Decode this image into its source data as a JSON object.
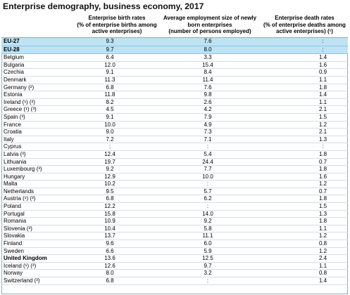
{
  "title": "Enterprise demography, business economy, 2017",
  "headers": [
    "",
    "Enterprise birth rates\n(% of enterprise births among active enterprises)",
    "Average employment size of newly born enterprises\n(number of persons employed)",
    "Enterprise death rates\n(% of enterprise deaths among active enterprises) (¹)"
  ],
  "rows": [
    {
      "label": "EU-27",
      "birth": "9.3",
      "emp": "7.6",
      "death": ":",
      "type": "agg"
    },
    {
      "label": "EU-28",
      "birth": "9.7",
      "emp": "8.0",
      "death": ":",
      "type": "agg"
    },
    {
      "label": "Belgium",
      "birth": "6.4",
      "emp": "3.3",
      "death": "1.4"
    },
    {
      "label": "Bulgaria",
      "birth": "12.0",
      "emp": "15.4",
      "death": "1.6"
    },
    {
      "label": "Czechia",
      "birth": "9.1",
      "emp": "8.4",
      "death": "0.9"
    },
    {
      "label": "Denmark",
      "birth": "11.3",
      "emp": "11.4",
      "death": "1.1"
    },
    {
      "label": "Germany (²)",
      "birth": "6.8",
      "emp": "7.6",
      "death": "1.8"
    },
    {
      "label": "Estonia",
      "birth": "11.8",
      "emp": "9.8",
      "death": "1.4"
    },
    {
      "label": "Ireland (¹) (²)",
      "birth": "8.2",
      "emp": "2.6",
      "death": "1.1"
    },
    {
      "label": "Greece (¹) (³)",
      "birth": "4.5",
      "emp": "4.2",
      "death": "2.1"
    },
    {
      "label": "Spain (³)",
      "birth": "9.1",
      "emp": "7.9",
      "death": "1.5"
    },
    {
      "label": "France",
      "birth": "10.0",
      "emp": "4.9",
      "death": "1.2"
    },
    {
      "label": "Croatia",
      "birth": "9.0",
      "emp": "7.3",
      "death": "2.1"
    },
    {
      "label": "Italy",
      "birth": "7.2",
      "emp": "7.1",
      "death": "1.3"
    },
    {
      "label": "Cyprus",
      "birth": ":",
      "emp": ":",
      "death": ":"
    },
    {
      "label": "Latvia (³)",
      "birth": "12.4",
      "emp": "5.4",
      "death": "1.8"
    },
    {
      "label": "Lithuania",
      "birth": "19.7",
      "emp": "24.4",
      "death": "0.7"
    },
    {
      "label": "Luxembourg (³)",
      "birth": "9.2",
      "emp": "7.7",
      "death": "1.8"
    },
    {
      "label": "Hungary",
      "birth": "12.9",
      "emp": "10.0",
      "death": "1.6"
    },
    {
      "label": "Malta",
      "birth": "10.2",
      "emp": ":",
      "death": "1.2"
    },
    {
      "label": "Netherlands",
      "birth": "9.5",
      "emp": "5.7",
      "death": "0.7"
    },
    {
      "label": "Austria (¹) (³)",
      "birth": "6.8",
      "emp": "6.2",
      "death": "1.8"
    },
    {
      "label": "Poland",
      "birth": "12.2",
      "emp": ":",
      "death": "1.5"
    },
    {
      "label": "Portugal",
      "birth": "15.8",
      "emp": "14.0",
      "death": "1.3"
    },
    {
      "label": "Romania",
      "birth": "10.9",
      "emp": "9.2",
      "death": "1.8"
    },
    {
      "label": "Slovenia (³)",
      "birth": "10.4",
      "emp": "5.8",
      "death": "1.1"
    },
    {
      "label": "Slovakia",
      "birth": "13.7",
      "emp": "11.1",
      "death": "1.2"
    },
    {
      "label": "Finland",
      "birth": "9.6",
      "emp": "6.0",
      "death": "0.8"
    },
    {
      "label": "Sweden",
      "birth": "6.6",
      "emp": "5.9",
      "death": "1.2"
    },
    {
      "label": "United Kingdom",
      "birth": "13.6",
      "emp": "12.5",
      "death": "2.4",
      "type": "sep-bold"
    },
    {
      "label": "Iceland (¹) (³)",
      "birth": "12.6",
      "emp": "9.7",
      "death": "1.1",
      "type": "sep"
    },
    {
      "label": "Norway",
      "birth": "8.0",
      "emp": "3.2",
      "death": "0.8"
    },
    {
      "label": "Switzerland (³)",
      "birth": "6.8",
      "emp": ":",
      "death": "1.4"
    }
  ]
}
